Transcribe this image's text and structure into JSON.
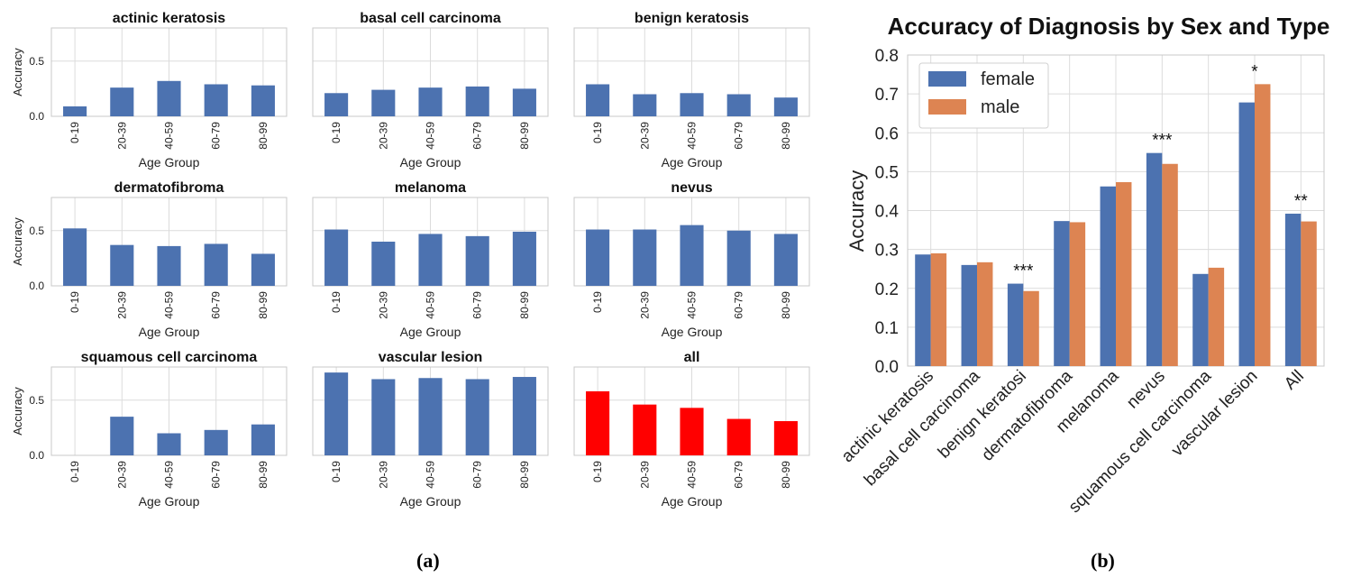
{
  "panel_captions": {
    "a": "(a)",
    "b": "(b)"
  },
  "colors": {
    "blue": "#4c72b0",
    "orange": "#dd8452",
    "red": "#ff0000",
    "grid": "#dcdcdc",
    "frame": "#c8c8c8"
  },
  "chart_data": [
    {
      "panel": "(a)",
      "type": "bar",
      "layout": "3x3 grid of small multiples",
      "x_categories": [
        "0-19",
        "20-39",
        "40-59",
        "60-79",
        "80-99"
      ],
      "xlabel": "Age Group",
      "ylabel": "Accuracy",
      "ylim": [
        0,
        0.8
      ],
      "yticks": [
        0.0,
        0.5
      ],
      "ytick_labels": [
        "0.0",
        "0.5"
      ],
      "grid": true,
      "subplots": [
        {
          "title": "actinic keratosis",
          "values": [
            0.09,
            0.26,
            0.32,
            0.29,
            0.28
          ],
          "color": "#4c72b0"
        },
        {
          "title": "basal cell carcinoma",
          "values": [
            0.21,
            0.24,
            0.26,
            0.27,
            0.25
          ],
          "color": "#4c72b0"
        },
        {
          "title": "benign keratosis",
          "values": [
            0.29,
            0.2,
            0.21,
            0.2,
            0.17
          ],
          "color": "#4c72b0"
        },
        {
          "title": "dermatofibroma",
          "values": [
            0.52,
            0.37,
            0.36,
            0.38,
            0.29
          ],
          "color": "#4c72b0"
        },
        {
          "title": "melanoma",
          "values": [
            0.51,
            0.4,
            0.47,
            0.45,
            0.49
          ],
          "color": "#4c72b0"
        },
        {
          "title": "nevus",
          "values": [
            0.51,
            0.51,
            0.55,
            0.5,
            0.47
          ],
          "color": "#4c72b0"
        },
        {
          "title": "squamous cell carcinoma",
          "values": [
            0.0,
            0.35,
            0.2,
            0.23,
            0.28
          ],
          "color": "#4c72b0"
        },
        {
          "title": "vascular lesion",
          "values": [
            0.75,
            0.69,
            0.7,
            0.69,
            0.71
          ],
          "color": "#4c72b0"
        },
        {
          "title": "all",
          "values": [
            0.58,
            0.46,
            0.43,
            0.33,
            0.31
          ],
          "color": "#ff0000"
        }
      ]
    },
    {
      "panel": "(b)",
      "type": "bar",
      "title": "Accuracy of Diagnosis by Sex and Type",
      "ylabel": "Accuracy",
      "xlabel": "",
      "ylim": [
        0,
        0.8
      ],
      "yticks": [
        0.0,
        0.1,
        0.2,
        0.3,
        0.4,
        0.5,
        0.6,
        0.7,
        0.8
      ],
      "ytick_labels": [
        "0.0",
        "0.1",
        "0.2",
        "0.3",
        "0.4",
        "0.5",
        "0.6",
        "0.7",
        "0.8"
      ],
      "grid": true,
      "legend_position": "top-left",
      "categories": [
        "actinic keratosis",
        "basal cell carcinoma",
        "benign keratosi",
        "dermatofibroma",
        "melanoma",
        "nevus",
        "squamous cell carcinoma",
        "vascular lesion",
        "All"
      ],
      "series": [
        {
          "name": "female",
          "color": "#4c72b0",
          "values": [
            0.287,
            0.26,
            0.212,
            0.373,
            0.462,
            0.548,
            0.237,
            0.678,
            0.392
          ]
        },
        {
          "name": "male",
          "color": "#dd8452",
          "values": [
            0.29,
            0.267,
            0.193,
            0.37,
            0.473,
            0.52,
            0.253,
            0.725,
            0.372
          ]
        }
      ],
      "significance": [
        "",
        "",
        "***",
        "",
        "",
        "***",
        "",
        "*",
        "**"
      ]
    }
  ]
}
